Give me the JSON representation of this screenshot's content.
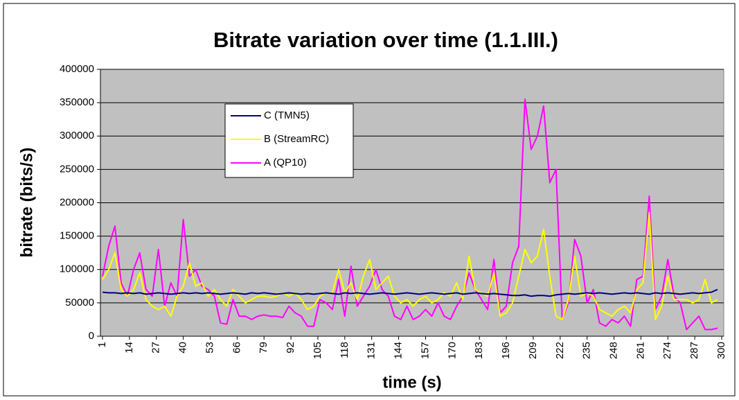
{
  "chart_data": {
    "type": "line",
    "title": "Bitrate variation over time (1.1.III.)",
    "x_label": "time (s)",
    "y_label": "bitrate (bits/s)",
    "x": [
      1,
      4,
      7,
      10,
      13,
      16,
      19,
      22,
      25,
      28,
      31,
      34,
      37,
      40,
      43,
      46,
      49,
      52,
      55,
      58,
      61,
      64,
      67,
      70,
      73,
      76,
      79,
      82,
      85,
      88,
      91,
      94,
      97,
      100,
      103,
      106,
      109,
      112,
      115,
      118,
      121,
      124,
      127,
      130,
      133,
      136,
      139,
      142,
      145,
      148,
      151,
      154,
      157,
      160,
      163,
      166,
      169,
      172,
      175,
      178,
      181,
      184,
      187,
      190,
      193,
      196,
      199,
      202,
      205,
      208,
      211,
      214,
      217,
      220,
      223,
      226,
      229,
      232,
      235,
      238,
      241,
      244,
      247,
      250,
      253,
      256,
      259,
      262,
      265,
      268,
      271,
      274,
      277,
      280,
      283,
      286,
      289,
      292,
      295,
      298
    ],
    "xlim": [
      1,
      300
    ],
    "xticks": [
      1,
      14,
      27,
      40,
      53,
      66,
      79,
      92,
      105,
      118,
      131,
      144,
      157,
      170,
      183,
      196,
      209,
      222,
      235,
      248,
      261,
      274,
      287,
      300
    ],
    "ylim": [
      0,
      400000
    ],
    "yticks": [
      0,
      50000,
      100000,
      150000,
      200000,
      250000,
      300000,
      350000,
      400000
    ],
    "grid": true,
    "legend": "upper-left",
    "series": [
      {
        "name": "C (TMN5)",
        "color": "#000080",
        "values": [
          66000,
          65000,
          65000,
          64000,
          65000,
          64000,
          65000,
          63000,
          64000,
          65000,
          64000,
          63000,
          64000,
          65000,
          64000,
          65000,
          64000,
          65000,
          64000,
          63000,
          64000,
          65000,
          64000,
          63000,
          65000,
          64000,
          65000,
          64000,
          63000,
          64000,
          65000,
          64000,
          63000,
          64000,
          63000,
          64000,
          65000,
          64000,
          63000,
          65000,
          64000,
          65000,
          64000,
          63000,
          64000,
          65000,
          64000,
          63000,
          64000,
          65000,
          64000,
          63000,
          64000,
          65000,
          64000,
          63000,
          64000,
          65000,
          63000,
          64000,
          65000,
          64000,
          63000,
          64000,
          63000,
          62000,
          61000,
          61000,
          62000,
          60000,
          61000,
          61000,
          60000,
          62000,
          63000,
          64000,
          63000,
          64000,
          65000,
          64000,
          65000,
          64000,
          63000,
          64000,
          65000,
          64000,
          65000,
          64000,
          63000,
          65000,
          64000,
          65000,
          64000,
          63000,
          64000,
          65000,
          64000,
          65000,
          66000,
          70000
        ]
      },
      {
        "name": "B (StreamRC)",
        "color": "#ffff00",
        "values": [
          85000,
          100000,
          125000,
          70000,
          60000,
          70000,
          95000,
          55000,
          45000,
          40000,
          45000,
          30000,
          60000,
          75000,
          110000,
          75000,
          80000,
          60000,
          70000,
          55000,
          45000,
          70000,
          60000,
          50000,
          55000,
          60000,
          60000,
          58000,
          60000,
          65000,
          60000,
          65000,
          55000,
          40000,
          45000,
          60000,
          65000,
          65000,
          100000,
          65000,
          80000,
          55000,
          90000,
          115000,
          70000,
          80000,
          90000,
          60000,
          50000,
          55000,
          45000,
          55000,
          60000,
          50000,
          55000,
          65000,
          60000,
          80000,
          55000,
          120000,
          70000,
          65000,
          60000,
          95000,
          30000,
          35000,
          50000,
          90000,
          130000,
          110000,
          120000,
          160000,
          90000,
          30000,
          25000,
          55000,
          120000,
          60000,
          65000,
          60000,
          40000,
          35000,
          30000,
          40000,
          45000,
          35000,
          70000,
          80000,
          185000,
          25000,
          45000,
          90000,
          55000,
          55000,
          55000,
          50000,
          55000,
          85000,
          50000,
          55000
        ]
      },
      {
        "name": "A (QP10)",
        "color": "#ff00ff",
        "values": [
          90000,
          135000,
          165000,
          80000,
          60000,
          100000,
          125000,
          70000,
          60000,
          130000,
          45000,
          80000,
          60000,
          175000,
          90000,
          100000,
          75000,
          70000,
          60000,
          20000,
          18000,
          55000,
          30000,
          30000,
          25000,
          30000,
          32000,
          30000,
          30000,
          28000,
          45000,
          35000,
          30000,
          15000,
          15000,
          55000,
          50000,
          40000,
          85000,
          30000,
          105000,
          45000,
          60000,
          75000,
          100000,
          70000,
          60000,
          30000,
          25000,
          45000,
          25000,
          30000,
          40000,
          30000,
          50000,
          30000,
          25000,
          45000,
          60000,
          95000,
          70000,
          55000,
          40000,
          115000,
          35000,
          45000,
          110000,
          135000,
          355000,
          280000,
          300000,
          345000,
          230000,
          250000,
          25000,
          50000,
          145000,
          120000,
          50000,
          70000,
          20000,
          15000,
          25000,
          20000,
          30000,
          15000,
          85000,
          90000,
          210000,
          40000,
          60000,
          115000,
          60000,
          50000,
          10000,
          20000,
          30000,
          10000,
          10000,
          12000
        ]
      }
    ]
  }
}
